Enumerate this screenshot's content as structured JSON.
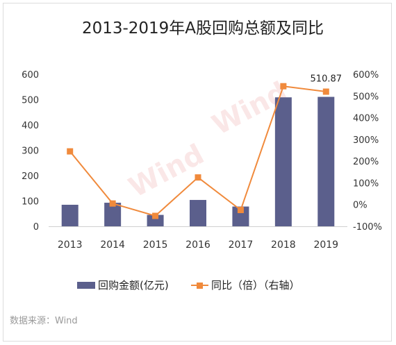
{
  "chart_data": {
    "type": "bar",
    "title": "2013-2019年A股回购总额及同比",
    "categories": [
      "2013",
      "2014",
      "2015",
      "2016",
      "2017",
      "2018",
      "2019"
    ],
    "series": [
      {
        "name": "回购金额(亿元)",
        "type": "bar",
        "axis": "left",
        "color": "#5b5f8c",
        "values": [
          85,
          93,
          45,
          104,
          78,
          509,
          510.87
        ]
      },
      {
        "name": "同比（倍）（右轴）",
        "type": "line",
        "axis": "right",
        "color": "#f08a3c",
        "values": [
          245,
          5,
          -52,
          125,
          -25,
          545,
          520
        ]
      }
    ],
    "data_labels": [
      {
        "category": "2019",
        "series": "回购金额(亿元)",
        "text": "510.87"
      }
    ],
    "yaxis_left": {
      "min": 0,
      "max": 600,
      "ticks": [
        "0",
        "100",
        "200",
        "300",
        "400",
        "500",
        "600"
      ]
    },
    "yaxis_right": {
      "min": -100,
      "max": 600,
      "ticks": [
        "-100%",
        "0%",
        "100%",
        "200%",
        "300%",
        "400%",
        "500%",
        "600%"
      ]
    },
    "grid": false,
    "legend_position": "bottom",
    "source": "数据来源：Wind",
    "watermark": "Wind"
  }
}
